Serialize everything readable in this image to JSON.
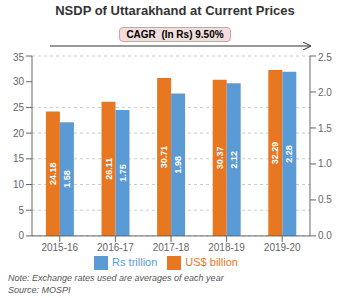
{
  "chart_data": {
    "type": "bar",
    "title": "NSDP of Uttarakhand at Current Prices",
    "categories": [
      "2015-16",
      "2016-17",
      "2017-18",
      "2018-19",
      "2019-20"
    ],
    "series": [
      {
        "name": "US$ billion",
        "color": "#E87722",
        "values": [
          24.18,
          26.11,
          30.71,
          30.37,
          32.29
        ]
      },
      {
        "name": "Rs trillion",
        "color": "#5B9BD5",
        "values": [
          1.58,
          1.75,
          1.98,
          2.12,
          2.28
        ],
        "axis": "y2"
      }
    ],
    "ylim": [
      0,
      35
    ],
    "yticks": [
      0,
      5,
      10,
      15,
      20,
      25,
      30,
      35
    ],
    "y2lim": [
      0,
      2.5
    ],
    "y2ticks": [
      {
        "value": 0,
        "label": "0.0"
      },
      0.5,
      {
        "value": 1,
        "label": "1.0"
      },
      1.5,
      {
        "value": 2,
        "label": "2.0"
      },
      2.5
    ],
    "grid": true,
    "legend": "bottom",
    "data_labels": true,
    "annotations": [
      "CAGR  (In Rs) 9.50%",
      "Note: Exchange rates used are averages of each year",
      "Source: MOSPI"
    ]
  }
}
